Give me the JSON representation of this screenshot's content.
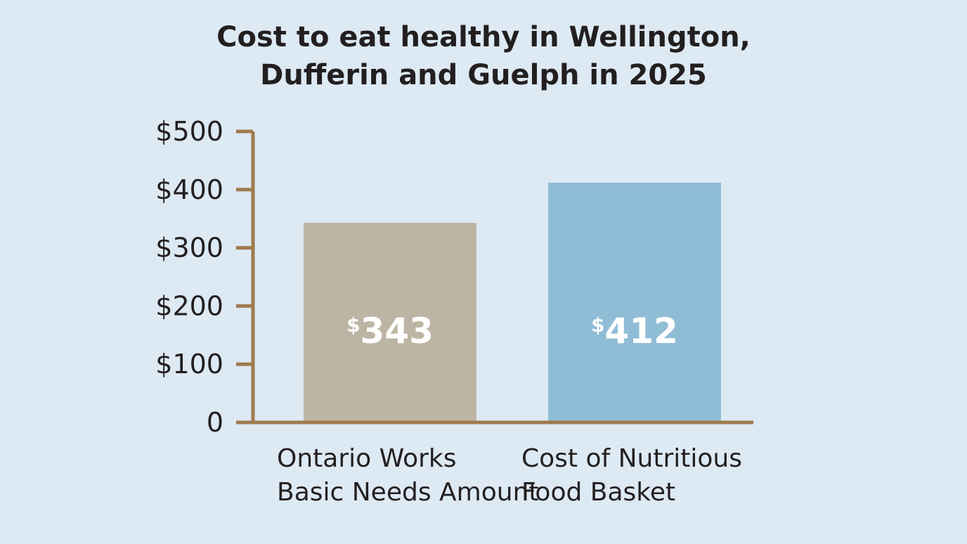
{
  "chart_data": {
    "type": "bar",
    "title": "Cost to eat healthy in Wellington,\nDufferin and Guelph in 2025",
    "categories": [
      "Ontario Works\nBasic Needs Amount",
      "Cost of Nutritious\nFood Basket"
    ],
    "values": [
      343,
      412
    ],
    "value_labels": [
      "$343",
      "$412"
    ],
    "colors": [
      "#bdb5a4",
      "#90bdd6"
    ],
    "ylim": [
      0,
      500
    ],
    "yticks": [
      0,
      {
        "value": 100,
        "label": "$100"
      },
      {
        "value": 200,
        "label": "$200"
      },
      {
        "value": 300,
        "label": "$300"
      },
      {
        "value": 400,
        "label": "$400"
      },
      {
        "value": 500,
        "label": "$500"
      }
    ]
  }
}
